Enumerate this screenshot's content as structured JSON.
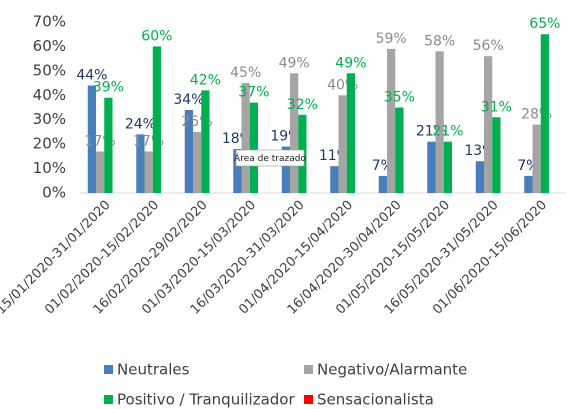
{
  "chart_data": {
    "type": "bar",
    "categories": [
      "15/01/2020-31/01/2020",
      "01/02/2020-15/02/2020",
      "16/02/2020-29/02/2020",
      "01/03/2020-15/03/2020",
      "16/03/2020-31/03/2020",
      "01/04/2020-15/04/2020",
      "16/04/2020-30/04/2020",
      "01/05/2020-15/05/2020",
      "16/05/2020-31/05/2020",
      "01/06/2020-15/06/2020"
    ],
    "series": [
      {
        "name": "Neutrales",
        "color": "#4a7ebb",
        "label_color": "#1f3864",
        "values": [
          44,
          24,
          34,
          18,
          19,
          11,
          7,
          21,
          13,
          7
        ],
        "value_labels": [
          "44%",
          "24%",
          "34%",
          "18%",
          "19%",
          "11%",
          "7%",
          "21%",
          "13%",
          "7%"
        ]
      },
      {
        "name": "Negativo/Alarmante",
        "color": "#a5a5a5",
        "label_color": "#8c8c8c",
        "values": [
          17,
          17,
          25,
          45,
          49,
          40,
          59,
          58,
          56,
          28
        ],
        "value_labels": [
          "17%",
          "17%",
          "25%",
          "45%",
          "49%",
          "40%",
          "59%",
          "58%",
          "56%",
          "28%"
        ]
      },
      {
        "name": "Positivo / Tranquilizador",
        "color": "#00b050",
        "label_color": "#00b050",
        "values": [
          39,
          60,
          42,
          37,
          32,
          49,
          35,
          21,
          31,
          65
        ],
        "value_labels": [
          "39%",
          "60%",
          "42%",
          "37%",
          "32%",
          "49%",
          "35%",
          "21%",
          "31%",
          "65%"
        ]
      },
      {
        "name": "Sensacionalista",
        "color": "#ff0000",
        "label_color": "#ff0000",
        "values": [
          null,
          null,
          null,
          null,
          null,
          null,
          null,
          null,
          null,
          null
        ]
      }
    ],
    "ylim": [
      0,
      70
    ],
    "yticks": [
      {
        "value": 0,
        "label": "0%"
      },
      {
        "value": 10,
        "label": "10%"
      },
      {
        "value": 20,
        "label": "20%"
      },
      {
        "value": 30,
        "label": "30%"
      },
      {
        "value": 40,
        "label": "40%"
      },
      {
        "value": 50,
        "label": "50%"
      },
      {
        "value": 60,
        "label": "60%"
      },
      {
        "value": 70,
        "label": "70%"
      }
    ],
    "grid": false,
    "legend": "bottom",
    "annotations": [
      "Área de trazado"
    ]
  }
}
